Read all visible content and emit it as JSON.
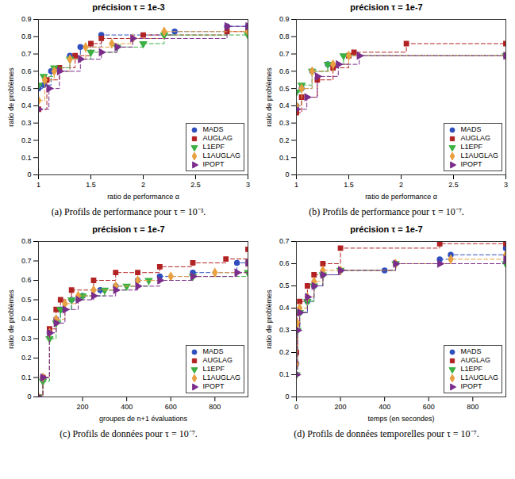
{
  "chart_data": [
    {
      "type": "line",
      "title": "précision τ = 1e-3",
      "caption": "(a) Profils de performance pour τ = 10⁻³.",
      "x_label": "ratio de performance α",
      "y_label": "ratio de problèmes",
      "xlim": [
        1,
        3
      ],
      "xticks": [
        1,
        1.5,
        2,
        2.5,
        3
      ],
      "ylim": [
        0,
        0.9
      ],
      "yticks": [
        0,
        0.1,
        0.2,
        0.3,
        0.4,
        0.5,
        0.6,
        0.7,
        0.8,
        0.9
      ],
      "grid": false,
      "legend": "lower right",
      "line_style": "dashed",
      "series": [
        {
          "name": "MADS",
          "color": "#2f4fbf",
          "marker": "circle",
          "x": [
            1,
            1.05,
            1.12,
            1.3,
            1.4,
            1.6,
            2.3,
            2.8,
            3
          ],
          "values": [
            0.5,
            0.52,
            0.6,
            0.69,
            0.74,
            0.81,
            0.83,
            0.86,
            0.86
          ]
        },
        {
          "name": "AUGLAG",
          "color": "#b22222",
          "marker": "square",
          "x": [
            1,
            1.08,
            1.2,
            1.35,
            1.5,
            1.6,
            2.0,
            2.8,
            3
          ],
          "values": [
            0.38,
            0.55,
            0.62,
            0.69,
            0.76,
            0.79,
            0.81,
            0.83,
            0.83
          ]
        },
        {
          "name": "L1EPF",
          "color": "#3cb043",
          "marker": "triangle-down",
          "x": [
            1,
            1.05,
            1.15,
            1.3,
            1.5,
            1.75,
            2.0,
            2.2,
            3
          ],
          "values": [
            0.52,
            0.57,
            0.62,
            0.67,
            0.71,
            0.74,
            0.76,
            0.81,
            0.81
          ]
        },
        {
          "name": "L1AUGLAG",
          "color": "#e8a040",
          "marker": "diamond",
          "x": [
            1,
            1.06,
            1.15,
            1.3,
            1.45,
            1.7,
            1.9,
            2.2,
            3
          ],
          "values": [
            0.43,
            0.55,
            0.6,
            0.67,
            0.74,
            0.76,
            0.79,
            0.83,
            0.83
          ]
        },
        {
          "name": "IPOPT",
          "color": "#7b2d8b",
          "marker": "triangle-right",
          "x": [
            1,
            1.1,
            1.2,
            1.4,
            1.6,
            1.75,
            1.9,
            2.8,
            3
          ],
          "values": [
            0.38,
            0.5,
            0.6,
            0.67,
            0.71,
            0.74,
            0.79,
            0.86,
            0.86
          ]
        }
      ]
    },
    {
      "type": "line",
      "title": "précision τ = 1e-7",
      "caption": "(b) Profils de performance pour τ = 10⁻⁷.",
      "x_label": "ratio de performance α",
      "y_label": "ratio de problèmes",
      "xlim": [
        1,
        3
      ],
      "xticks": [
        1,
        1.5,
        2,
        2.5,
        3
      ],
      "ylim": [
        0,
        0.9
      ],
      "yticks": [
        0,
        0.1,
        0.2,
        0.3,
        0.4,
        0.5,
        0.6,
        0.7,
        0.8,
        0.9
      ],
      "grid": false,
      "legend": "lower right",
      "line_style": "dashed",
      "series": [
        {
          "name": "MADS",
          "color": "#2f4fbf",
          "marker": "circle",
          "x": [
            1,
            1.05,
            1.15,
            1.3,
            1.5,
            3
          ],
          "values": [
            0.4,
            0.5,
            0.6,
            0.64,
            0.69,
            0.69
          ]
        },
        {
          "name": "AUGLAG",
          "color": "#b22222",
          "marker": "square",
          "x": [
            1,
            1.05,
            1.2,
            1.35,
            1.5,
            1.55,
            2.05,
            3
          ],
          "values": [
            0.36,
            0.45,
            0.55,
            0.62,
            0.69,
            0.71,
            0.76,
            0.76
          ]
        },
        {
          "name": "L1EPF",
          "color": "#3cb043",
          "marker": "triangle-down",
          "x": [
            1,
            1.05,
            1.15,
            1.3,
            1.45,
            3
          ],
          "values": [
            0.48,
            0.52,
            0.6,
            0.64,
            0.69,
            0.69
          ]
        },
        {
          "name": "L1AUGLAG",
          "color": "#e8a040",
          "marker": "diamond",
          "x": [
            1,
            1.05,
            1.15,
            1.35,
            1.5,
            3
          ],
          "values": [
            0.4,
            0.5,
            0.6,
            0.64,
            0.69,
            0.69
          ]
        },
        {
          "name": "IPOPT",
          "color": "#7b2d8b",
          "marker": "triangle-right",
          "x": [
            1,
            1.1,
            1.2,
            1.4,
            1.6,
            3
          ],
          "values": [
            0.38,
            0.45,
            0.57,
            0.64,
            0.69,
            0.69
          ]
        }
      ]
    },
    {
      "type": "line",
      "title": "précision τ = 1e-7",
      "caption": "(c) Profils de données pour τ = 10⁻⁷.",
      "x_label": "groupes de n+1 évaluations",
      "y_label": "ratio de problèmes",
      "xlim": [
        0,
        950
      ],
      "xticks": [
        200,
        400,
        600,
        800
      ],
      "ylim": [
        0,
        0.8
      ],
      "yticks": [
        0,
        0.1,
        0.2,
        0.3,
        0.4,
        0.5,
        0.6,
        0.7,
        0.8
      ],
      "grid": false,
      "legend": "lower right",
      "line_style": "dashed",
      "series": [
        {
          "name": "MADS",
          "color": "#2f4fbf",
          "marker": "circle",
          "x": [
            0,
            20,
            50,
            80,
            100,
            150,
            200,
            280,
            350,
            450,
            550,
            700,
            900,
            950
          ],
          "values": [
            0,
            0.1,
            0.33,
            0.4,
            0.45,
            0.5,
            0.52,
            0.55,
            0.57,
            0.6,
            0.62,
            0.64,
            0.69,
            0.69
          ]
        },
        {
          "name": "AUGLAG",
          "color": "#b22222",
          "marker": "square",
          "x": [
            0,
            20,
            50,
            80,
            100,
            150,
            250,
            350,
            450,
            550,
            700,
            850,
            950
          ],
          "values": [
            0,
            0.1,
            0.35,
            0.45,
            0.5,
            0.55,
            0.6,
            0.64,
            0.64,
            0.67,
            0.69,
            0.71,
            0.76
          ]
        },
        {
          "name": "L1EPF",
          "color": "#3cb043",
          "marker": "triangle-down",
          "x": [
            0,
            20,
            50,
            80,
            100,
            150,
            200,
            300,
            400,
            500,
            700,
            950
          ],
          "values": [
            0,
            0.08,
            0.3,
            0.38,
            0.45,
            0.5,
            0.52,
            0.55,
            0.57,
            0.6,
            0.62,
            0.64
          ]
        },
        {
          "name": "L1AUGLAG",
          "color": "#e8a040",
          "marker": "diamond",
          "x": [
            0,
            20,
            50,
            80,
            120,
            180,
            250,
            350,
            450,
            600,
            800,
            950
          ],
          "values": [
            0,
            0.1,
            0.33,
            0.4,
            0.48,
            0.52,
            0.55,
            0.57,
            0.6,
            0.62,
            0.64,
            0.69
          ]
        },
        {
          "name": "IPOPT",
          "color": "#7b2d8b",
          "marker": "triangle-right",
          "x": [
            0,
            20,
            50,
            80,
            120,
            180,
            250,
            350,
            450,
            550,
            700,
            900,
            950
          ],
          "values": [
            0,
            0.1,
            0.33,
            0.38,
            0.45,
            0.5,
            0.52,
            0.55,
            0.57,
            0.6,
            0.62,
            0.64,
            0.69
          ]
        }
      ]
    },
    {
      "type": "line",
      "title": "précision τ = 1e-7",
      "caption": "(d) Profils de données temporelles pour τ = 10⁻⁷.",
      "x_label": "temps (en secondes)",
      "y_label": "ratio de problèmes",
      "xlim": [
        0,
        950
      ],
      "xticks": [
        0,
        200,
        400,
        600,
        800
      ],
      "ylim": [
        0,
        0.7
      ],
      "yticks": [
        0,
        0.1,
        0.2,
        0.3,
        0.4,
        0.5,
        0.6,
        0.7
      ],
      "grid": false,
      "legend": "lower right",
      "line_style": "dashed",
      "series": [
        {
          "name": "MADS",
          "color": "#2f4fbf",
          "marker": "circle",
          "x": [
            0,
            5,
            15,
            50,
            80,
            120,
            200,
            400,
            450,
            650,
            700,
            950
          ],
          "values": [
            0.15,
            0.33,
            0.38,
            0.43,
            0.5,
            0.55,
            0.57,
            0.57,
            0.6,
            0.62,
            0.64,
            0.67
          ]
        },
        {
          "name": "AUGLAG",
          "color": "#b22222",
          "marker": "square",
          "x": [
            0,
            5,
            15,
            50,
            80,
            120,
            200,
            650,
            950
          ],
          "values": [
            0.2,
            0.38,
            0.43,
            0.5,
            0.55,
            0.6,
            0.67,
            0.69,
            0.69
          ]
        },
        {
          "name": "L1EPF",
          "color": "#3cb043",
          "marker": "triangle-down",
          "x": [
            0,
            5,
            15,
            50,
            80,
            120,
            200,
            450,
            950
          ],
          "values": [
            0.1,
            0.3,
            0.38,
            0.43,
            0.5,
            0.55,
            0.57,
            0.6,
            0.6
          ]
        },
        {
          "name": "L1AUGLAG",
          "color": "#e8a040",
          "marker": "diamond",
          "x": [
            0,
            5,
            15,
            50,
            80,
            120,
            200,
            450,
            700,
            950
          ],
          "values": [
            0.15,
            0.33,
            0.4,
            0.45,
            0.52,
            0.57,
            0.57,
            0.6,
            0.62,
            0.64
          ]
        },
        {
          "name": "IPOPT",
          "color": "#7b2d8b",
          "marker": "triangle-right",
          "x": [
            0,
            5,
            15,
            50,
            80,
            120,
            200,
            450,
            650,
            950
          ],
          "values": [
            0.1,
            0.3,
            0.38,
            0.45,
            0.5,
            0.55,
            0.57,
            0.6,
            0.6,
            0.62
          ]
        }
      ]
    }
  ]
}
